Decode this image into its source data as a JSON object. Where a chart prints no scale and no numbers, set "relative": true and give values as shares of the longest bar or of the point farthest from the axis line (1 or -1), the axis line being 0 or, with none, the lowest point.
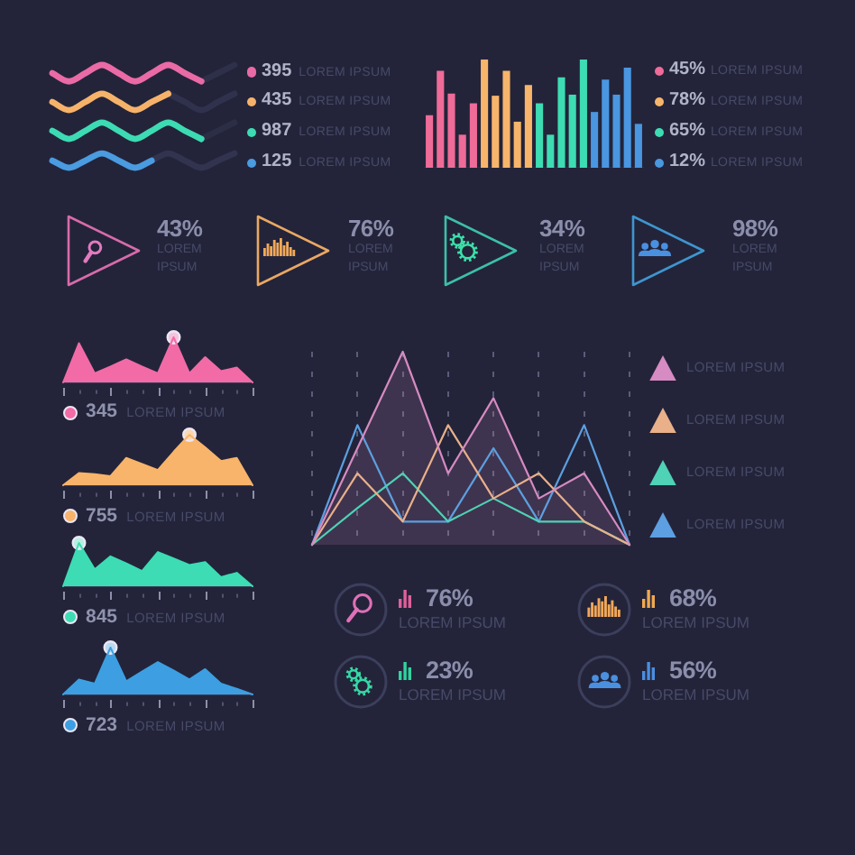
{
  "chart_data": [
    {
      "type": "line",
      "relative": true,
      "categories": [
        null,
        null,
        null,
        null,
        null,
        null,
        null,
        null,
        null,
        null,
        null,
        null
      ],
      "legend": "right",
      "series": [
        {
          "name": "395 LOREM IPSUM",
          "color": "#ea6aa5",
          "values": [
            0.92,
            0.84,
            0.92,
            1,
            0.92,
            0.84,
            0.92,
            1,
            0.92,
            0.84,
            null,
            null
          ]
        },
        {
          "name": "435 LOREM IPSUM",
          "color": "#f7b26a",
          "values": [
            0.64,
            0.56,
            0.64,
            0.72,
            0.64,
            0.56,
            0.64,
            0.72,
            null,
            null,
            null,
            null
          ]
        },
        {
          "name": "987 LOREM IPSUM",
          "color": "#3ddbb3",
          "values": [
            0.36,
            0.28,
            0.36,
            0.44,
            0.36,
            0.28,
            0.36,
            0.44,
            0.36,
            0.28,
            null,
            null
          ]
        },
        {
          "name": "125 LOREM IPSUM",
          "color": "#4a9be0",
          "values": [
            0.07,
            0,
            0.07,
            0.14,
            0.07,
            0,
            0.07,
            null,
            null,
            null,
            null,
            null
          ]
        },
        {
          "color": "#2e3049",
          "values": [
            null,
            null,
            null,
            null,
            null,
            null,
            null,
            null,
            null,
            0.84,
            0.92,
            1
          ]
        },
        {
          "color": "#30324d",
          "values": [
            null,
            null,
            null,
            null,
            null,
            null,
            null,
            0.72,
            0.64,
            0.56,
            0.64,
            0.72
          ]
        },
        {
          "color": "#2c2e46",
          "values": [
            null,
            null,
            null,
            null,
            null,
            null,
            null,
            null,
            null,
            0.28,
            0.36,
            0.44
          ]
        },
        {
          "color": "#31334f",
          "values": [
            null,
            null,
            null,
            null,
            null,
            null,
            0.07,
            0.14,
            0.07,
            0,
            0.07,
            0.14
          ]
        }
      ]
    },
    {
      "type": "bar",
      "relative": true,
      "stacked": true,
      "categories": [
        null,
        null,
        null,
        null,
        null,
        null,
        null,
        null,
        null,
        null,
        null,
        null,
        null,
        null,
        null,
        null,
        null,
        null,
        null,
        null
      ],
      "legend": "right",
      "series": [
        {
          "name": "45% LOREM IPSUM",
          "color": "#ef6b98",
          "values": [
            0.48,
            0.89,
            0.68,
            0.3,
            0.59,
            null,
            null,
            null,
            null,
            null,
            null,
            null,
            null,
            null,
            null,
            null,
            null,
            null,
            null,
            null
          ]
        },
        {
          "name": "78% LOREM IPSUM",
          "color": "#f7b56b",
          "values": [
            null,
            null,
            null,
            null,
            null,
            1,
            0.66,
            0.89,
            0.42,
            0.76,
            null,
            null,
            null,
            null,
            null,
            null,
            null,
            null,
            null,
            null
          ]
        },
        {
          "name": "65% LOREM IPSUM",
          "color": "#3ddcb2",
          "values": [
            null,
            null,
            null,
            null,
            null,
            null,
            null,
            null,
            null,
            null,
            0.59,
            0.3,
            0.83,
            0.67,
            1,
            null,
            null,
            null,
            null,
            null
          ]
        },
        {
          "name": "12% LOREM IPSUM",
          "color": "#4a96e0",
          "values": [
            null,
            null,
            null,
            null,
            null,
            null,
            null,
            null,
            null,
            null,
            null,
            null,
            null,
            null,
            null,
            0.51,
            0.81,
            0.67,
            0.92,
            0.4
          ]
        }
      ]
    },
    {
      "type": "other",
      "annotations": [
        "43%",
        "LOREM IPSUM",
        "76%",
        "LOREM IPSUM",
        "34%",
        "LOREM IPSUM",
        "98%",
        "LOREM IPSUM"
      ]
    },
    {
      "type": "line",
      "relative": true,
      "categories": [
        null,
        null,
        null,
        null,
        null,
        null,
        null,
        null,
        null,
        null,
        null,
        null,
        null
      ],
      "legend": "bottom",
      "series": [
        {
          "name": "345 LOREM IPSUM",
          "type": "area",
          "color": "#f26ba6",
          "values": [
            0,
            0.87,
            0.2,
            0.35,
            0.51,
            0.35,
            0.2,
            1,
            0.2,
            0.56,
            0.25,
            0.33,
            0
          ]
        },
        {
          "marker": "circle",
          "color": "#f5c3dc",
          "values": [
            null,
            null,
            null,
            null,
            null,
            null,
            null,
            1,
            null,
            null,
            null,
            null,
            null
          ]
        }
      ]
    },
    {
      "type": "line",
      "relative": true,
      "categories": [
        null,
        null,
        null,
        null,
        null,
        null,
        null,
        null,
        null,
        null,
        null,
        null,
        null
      ],
      "legend": "bottom",
      "series": [
        {
          "name": "755 LOREM IPSUM",
          "type": "area",
          "color": "#f8b46a",
          "values": [
            0,
            0.24,
            0.22,
            0.18,
            0.54,
            0.42,
            0.3,
            0.66,
            1,
            0.75,
            0.48,
            0.54,
            0
          ]
        },
        {
          "marker": "circle",
          "color": "#fbd8b0",
          "values": [
            null,
            null,
            null,
            null,
            null,
            null,
            null,
            null,
            1,
            null,
            null,
            null,
            null
          ]
        }
      ]
    },
    {
      "type": "line",
      "relative": true,
      "categories": [
        null,
        null,
        null,
        null,
        null,
        null,
        null,
        null,
        null,
        null,
        null,
        null,
        null
      ],
      "legend": "bottom",
      "series": [
        {
          "name": "845 LOREM IPSUM",
          "type": "area",
          "color": "#3ddcb4",
          "values": [
            0,
            1,
            0.39,
            0.69,
            0.53,
            0.35,
            0.79,
            0.64,
            0.49,
            0.56,
            0.21,
            0.31,
            0
          ]
        },
        {
          "marker": "circle",
          "color": "#b5f0e0",
          "values": [
            null,
            1,
            null,
            null,
            null,
            null,
            null,
            null,
            null,
            null,
            null,
            null,
            null
          ]
        }
      ]
    },
    {
      "type": "line",
      "relative": true,
      "categories": [
        null,
        null,
        null,
        null,
        null,
        null,
        null,
        null,
        null,
        null,
        null,
        null,
        null
      ],
      "legend": "bottom",
      "series": [
        {
          "name": "723 LOREM IPSUM",
          "type": "area",
          "color": "#3d9fe2",
          "values": [
            0,
            0.32,
            0.23,
            1,
            0.28,
            0.49,
            0.69,
            0.51,
            0.32,
            0.54,
            0.23,
            0.12,
            0
          ]
        },
        {
          "marker": "circle",
          "color": "#b8daf2",
          "values": [
            null,
            null,
            null,
            1,
            null,
            null,
            null,
            null,
            null,
            null,
            null,
            null,
            null
          ]
        }
      ]
    },
    {
      "type": "line",
      "relative": true,
      "categories": [
        null,
        null,
        null,
        null,
        null,
        null,
        null,
        null
      ],
      "grid": "x",
      "legend": "right",
      "series": [
        {
          "name": "LOREM IPSUM",
          "type": "area",
          "color": "#d68bc2",
          "values": [
            0,
            0.5,
            1,
            0.37,
            0.76,
            0.24,
            0.37,
            0
          ]
        },
        {
          "name": "LOREM IPSUM",
          "color": "#e9b08a",
          "values": [
            0,
            0.37,
            0.12,
            0.62,
            0.24,
            0.37,
            0.12,
            0
          ]
        },
        {
          "name": "LOREM IPSUM",
          "color": "#4fd2b6",
          "values": [
            0,
            0.19,
            0.37,
            0.12,
            0.24,
            0.12,
            0.12,
            0
          ]
        },
        {
          "name": "LOREM IPSUM",
          "color": "#5d9fe0",
          "values": [
            0,
            0.62,
            0.12,
            0.12,
            0.5,
            0.12,
            0.62,
            0
          ]
        }
      ]
    },
    {
      "type": "other",
      "annotations": [
        "76%",
        "LOREM IPSUM",
        "68%",
        "LOREM IPSUM",
        "23%",
        "LOREM IPSUM",
        "56%",
        "LOREM IPSUM"
      ]
    }
  ]
}
